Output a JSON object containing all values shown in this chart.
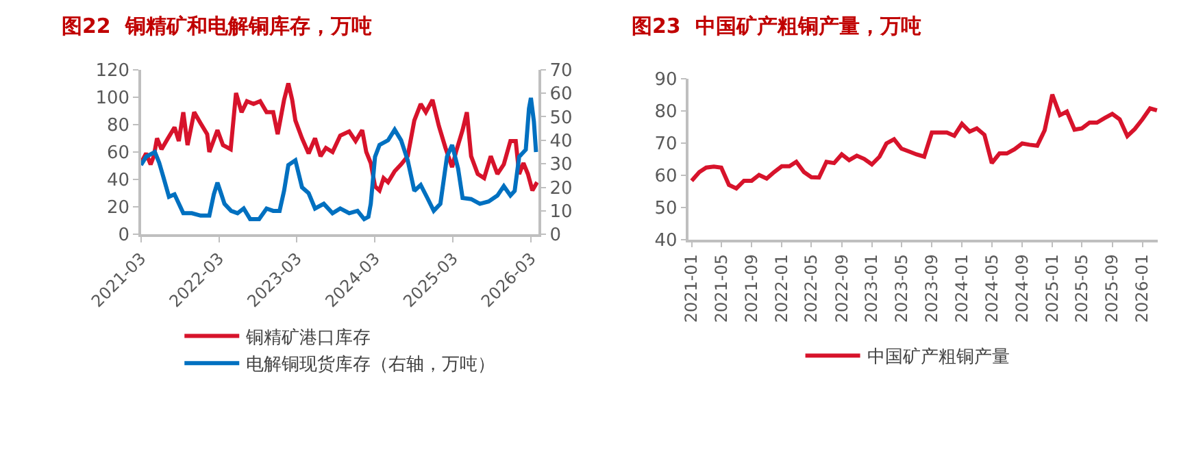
{
  "chart_data": [
    {
      "type": "line",
      "title": "图22  铜精矿和电解铜库存，万吨",
      "legend": "bottom",
      "xlim": [
        "2021-03-01",
        "2026-04-05"
      ],
      "xticks": [
        "2021-03",
        "2022-03",
        "2023-03",
        "2024-03",
        "2025-03",
        "2026-03"
      ],
      "ylim": [
        0,
        120
      ],
      "yticks": [
        0,
        20,
        40,
        60,
        80,
        100,
        120
      ],
      "y2lim": [
        0,
        70
      ],
      "y2ticks": [
        0,
        10,
        20,
        30,
        40,
        50,
        60,
        70
      ],
      "series": [
        {
          "name": "铜精矿港口库存",
          "color": "#d7132b",
          "x": [
            "2021-03-01",
            "2021-03-25",
            "2021-04-15",
            "2021-04-30",
            "2021-05-15",
            "2021-06-05",
            "2021-07-05",
            "2021-08-05",
            "2021-08-25",
            "2021-09-15",
            "2021-10-05",
            "2021-11-05",
            "2021-12-05",
            "2022-01-05",
            "2022-01-15",
            "2022-02-22",
            "2022-03-20",
            "2022-04-25",
            "2022-05-20",
            "2022-06-15",
            "2022-07-10",
            "2022-08-10",
            "2022-09-10",
            "2022-10-10",
            "2022-11-10",
            "2022-12-01",
            "2022-12-31",
            "2023-01-20",
            "2023-02-07",
            "2023-02-22",
            "2023-03-25",
            "2023-04-25",
            "2023-05-25",
            "2023-06-20",
            "2023-07-15",
            "2023-08-15",
            "2023-09-20",
            "2023-11-01",
            "2023-12-01",
            "2024-01-01",
            "2024-01-20",
            "2024-02-10",
            "2024-03-01",
            "2024-03-22",
            "2024-04-10",
            "2024-05-01",
            "2024-06-01",
            "2024-07-01",
            "2024-08-01",
            "2024-09-01",
            "2024-10-01",
            "2024-10-25",
            "2024-11-25",
            "2024-12-25",
            "2025-01-25",
            "2025-02-25",
            "2025-03-15",
            "2025-04-15",
            "2025-05-05",
            "2025-05-25",
            "2025-06-25",
            "2025-07-25",
            "2025-08-25",
            "2025-09-25",
            "2025-10-25",
            "2025-11-25",
            "2025-12-20",
            "2026-01-05",
            "2026-01-25",
            "2026-02-15",
            "2026-03-08",
            "2026-03-30"
          ],
          "values": [
            52,
            59,
            51,
            57,
            70,
            62,
            70,
            78,
            68,
            89,
            65,
            89,
            81,
            73,
            60,
            76,
            65,
            62,
            103,
            89,
            97,
            95,
            97,
            89,
            89,
            73,
            98,
            110,
            98,
            83,
            70,
            59,
            70,
            57,
            63,
            60,
            72,
            75,
            68,
            76,
            60,
            52,
            35,
            32,
            41,
            38,
            46,
            51,
            57,
            83,
            95,
            89,
            98,
            79,
            63,
            49,
            60,
            76,
            89,
            57,
            44,
            41,
            57,
            44,
            51,
            68,
            68,
            44,
            52,
            44,
            32,
            38
          ]
        },
        {
          "name": "电解铜现货库存（右轴，万吨）",
          "color": "#0070c0",
          "axis": "y2",
          "x": [
            "2021-03-01",
            "2021-03-25",
            "2021-05-05",
            "2021-05-25",
            "2021-06-15",
            "2021-07-10",
            "2021-08-05",
            "2021-09-15",
            "2021-10-25",
            "2021-12-05",
            "2022-01-15",
            "2022-02-05",
            "2022-02-22",
            "2022-03-07",
            "2022-03-27",
            "2022-04-27",
            "2022-05-27",
            "2022-06-25",
            "2022-07-25",
            "2022-09-05",
            "2022-10-10",
            "2022-11-10",
            "2022-12-10",
            "2022-12-31",
            "2023-01-20",
            "2023-02-22",
            "2023-03-25",
            "2023-04-25",
            "2023-05-25",
            "2023-07-05",
            "2023-08-15",
            "2023-09-20",
            "2023-11-01",
            "2023-12-10",
            "2024-01-10",
            "2024-01-30",
            "2024-02-10",
            "2024-03-01",
            "2024-03-22",
            "2024-05-01",
            "2024-06-01",
            "2024-07-01",
            "2024-08-01",
            "2024-09-01",
            "2024-10-01",
            "2024-11-01",
            "2024-12-01",
            "2025-01-01",
            "2025-02-01",
            "2025-02-25",
            "2025-03-25",
            "2025-04-15",
            "2025-05-25",
            "2025-07-05",
            "2025-08-15",
            "2025-09-25",
            "2025-10-25",
            "2025-11-25",
            "2025-12-15",
            "2026-01-05",
            "2026-02-05",
            "2026-02-20",
            "2026-03-01",
            "2026-03-15",
            "2026-03-25"
          ],
          "values": [
            29.5,
            33,
            35,
            30.5,
            24,
            16,
            17,
            9,
            9,
            8,
            8,
            17,
            22,
            18.5,
            13,
            10,
            9,
            11,
            6.5,
            6.5,
            11,
            10,
            10,
            18.5,
            29.5,
            31.5,
            20,
            17.5,
            11,
            13,
            9,
            11,
            9,
            10,
            6.5,
            7.5,
            13,
            33,
            38,
            40,
            44.5,
            40,
            31.5,
            18.5,
            21,
            15.5,
            10,
            13,
            33,
            38,
            28,
            15.5,
            15,
            13,
            14,
            16.5,
            20.5,
            16.5,
            18.5,
            33,
            36,
            53.5,
            58,
            48,
            35
          ]
        }
      ]
    },
    {
      "type": "line",
      "title": "图23  中国矿产粗铜产量，万吨",
      "legend": "bottom",
      "xlim": [
        "2020-12-20",
        "2026-03-05"
      ],
      "xticks": [
        "2021-01",
        "2021-05",
        "2021-09",
        "2022-01",
        "2022-05",
        "2022-09",
        "2023-01",
        "2023-05",
        "2023-09",
        "2024-01",
        "2024-05",
        "2024-09",
        "2025-01",
        "2025-05",
        "2025-09",
        "2026-01"
      ],
      "ylim": [
        40,
        90
      ],
      "yticks": [
        40,
        50,
        60,
        70,
        80,
        90
      ],
      "series": [
        {
          "name": "中国矿产粗铜产量",
          "color": "#d7132b",
          "x": [
            "2021-01",
            "2021-02",
            "2021-03",
            "2021-04",
            "2021-05",
            "2021-06",
            "2021-07",
            "2021-08",
            "2021-09",
            "2021-10",
            "2021-11",
            "2021-12",
            "2022-01",
            "2022-02",
            "2022-03",
            "2022-04",
            "2022-05",
            "2022-06",
            "2022-07",
            "2022-08",
            "2022-09",
            "2022-10",
            "2022-11",
            "2022-12",
            "2023-01",
            "2023-02",
            "2023-03",
            "2023-04",
            "2023-05",
            "2023-06",
            "2023-07",
            "2023-08",
            "2023-09",
            "2023-10",
            "2023-11",
            "2023-12",
            "2024-01",
            "2024-02",
            "2024-03",
            "2024-04",
            "2024-05",
            "2024-06",
            "2024-07",
            "2024-08",
            "2024-09",
            "2024-10",
            "2024-11",
            "2024-12",
            "2025-01",
            "2025-02",
            "2025-03",
            "2025-04",
            "2025-05",
            "2025-06",
            "2025-07",
            "2025-08",
            "2025-09",
            "2025-10",
            "2025-11",
            "2025-12",
            "2026-01",
            "2026-02",
            "2026-03"
          ],
          "values": [
            58.3,
            61,
            62.4,
            62.7,
            62.4,
            57,
            55.9,
            58.3,
            58.3,
            60.1,
            59,
            61,
            62.8,
            62.8,
            64.2,
            61,
            59.4,
            59.3,
            64.2,
            63.8,
            66.5,
            64.7,
            66.1,
            65.1,
            63.4,
            65.8,
            69.9,
            71.2,
            68.3,
            67.4,
            66.5,
            65.8,
            73.3,
            73.3,
            73.3,
            72.3,
            76,
            73.6,
            74.6,
            72.6,
            63.8,
            66.8,
            66.8,
            68.1,
            69.9,
            69.5,
            69.2,
            74,
            85.1,
            78.7,
            79.8,
            74.2,
            74.6,
            76.4,
            76.4,
            77.8,
            79.1,
            77.4,
            72.2,
            74.4,
            77.4,
            80.8,
            80.2
          ]
        }
      ]
    }
  ]
}
